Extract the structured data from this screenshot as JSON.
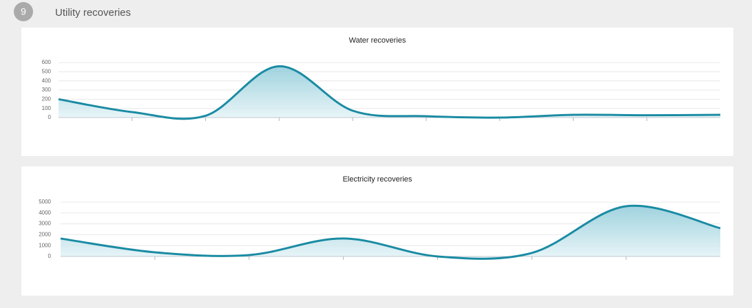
{
  "header": {
    "number": "9",
    "title": "Utility recoveries"
  },
  "chart_data": [
    {
      "type": "area",
      "title": "Water recoveries",
      "categories": [
        null,
        null,
        null,
        null,
        null,
        null,
        null,
        null,
        null,
        null
      ],
      "values": [
        200,
        60,
        20,
        560,
        75,
        15,
        0,
        30,
        25,
        30
      ],
      "color": "#1a8ba3",
      "ylim": [
        0,
        600
      ],
      "yticks": [
        0,
        100,
        200,
        300,
        400,
        500,
        600
      ],
      "grid": true
    },
    {
      "type": "area",
      "title": "Electricity recoveries",
      "categories": [
        null,
        null,
        null,
        null,
        null,
        null,
        null,
        null
      ],
      "values": [
        1650,
        380,
        130,
        1650,
        0,
        320,
        4620,
        2600
      ],
      "color": "#1a8ba3",
      "ylim": [
        0,
        5000
      ],
      "yticks": [
        0,
        1000,
        2000,
        3000,
        4000,
        5000
      ],
      "grid": true
    }
  ]
}
